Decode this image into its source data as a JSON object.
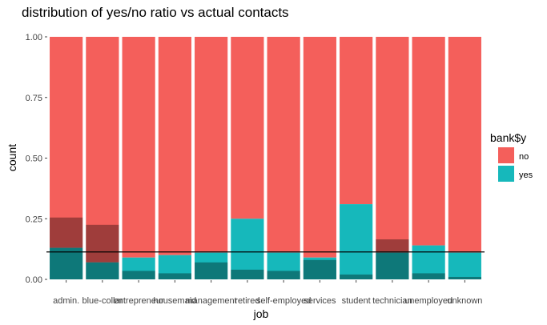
{
  "chart_data": {
    "type": "bar",
    "title": "distribution of yes/no ratio vs actual contacts",
    "xlabel": "job",
    "ylabel": "count",
    "ylim": [
      0,
      1
    ],
    "yticks": [
      "0.00",
      "0.25",
      "0.50",
      "0.75",
      "1.00"
    ],
    "ytick_values": [
      0,
      0.25,
      0.5,
      0.75,
      1
    ],
    "categories": [
      "admin.",
      "blue-collar",
      "entrepreneur",
      "housemaid",
      "management",
      "retired",
      "self-employed",
      "services",
      "student",
      "technician",
      "unemployed",
      "unknown"
    ],
    "series": [
      {
        "name": "no",
        "color": "#f45f5b",
        "values": [
          1,
          1,
          1,
          1,
          1,
          1,
          1,
          1,
          1,
          1,
          1,
          1
        ]
      },
      {
        "name": "yes",
        "color": "#16b8bb",
        "values": [
          0.13,
          0.07,
          0.09,
          0.1,
          0.11,
          0.25,
          0.11,
          0.09,
          0.31,
          0.11,
          0.14,
          0.11
        ]
      }
    ],
    "overlay": {
      "description_color": "#000000",
      "opacity": 0.35,
      "values": [
        0.255,
        0.225,
        0.035,
        0.025,
        0.07,
        0.04,
        0.035,
        0.08,
        0.02,
        0.165,
        0.025,
        0.01
      ]
    },
    "hline": {
      "value": 0.113,
      "color": "#000000"
    },
    "legend": {
      "title": "bank$y",
      "placement": "right",
      "entries": [
        {
          "label": "no",
          "color": "#f45f5b"
        },
        {
          "label": "yes",
          "color": "#16b8bb"
        }
      ]
    },
    "grid": false
  }
}
